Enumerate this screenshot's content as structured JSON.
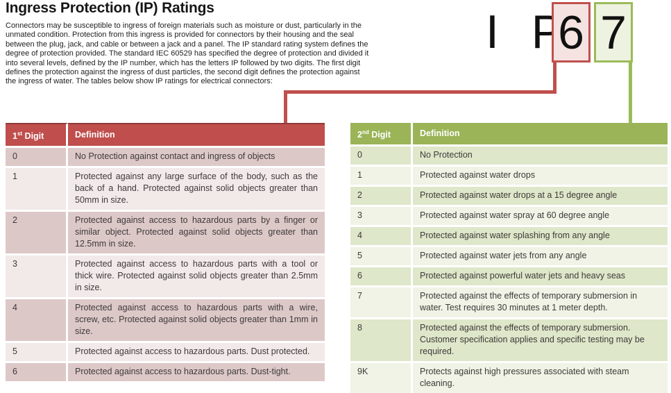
{
  "title": "Ingress Protection (IP) Ratings",
  "intro": "Connectors may be susceptible to ingress of foreign materials such as moisture or dust, particularly in the unmated condition. Protection from this ingress is provided for connectors by their housing and the seal between the plug, jack, and cable or between a jack and a panel. The IP standard rating system defines the degree of protection provided. The standard IEC 60529 has specified the degree of protection and divided it into several levels, defined by the IP number, which has the letters IP followed by two digits. The first digit defines the protection against the ingress of dust particles, the second digit defines the protection against the ingress of water. The tables below show IP ratings for electrical connectors:",
  "ip_graphic": {
    "letters": "I P",
    "first_digit": "6",
    "second_digit": "7",
    "red_accent": "#c0504d",
    "green_accent": "#9bbb59"
  },
  "first_digit_table": {
    "header": {
      "num": "1",
      "sup": "st",
      "rest": " Digit",
      "definition": "Definition"
    },
    "rows": [
      {
        "digit": "0",
        "definition": "No Protection against contact and ingress of objects"
      },
      {
        "digit": "1",
        "definition": "Protected against any large surface of the body, such as the back of a hand. Protected against solid objects greater than 50mm in size."
      },
      {
        "digit": "2",
        "definition": "Protected against access to hazardous parts by a finger or similar object. Protected against solid objects greater than 12.5mm in size."
      },
      {
        "digit": "3",
        "definition": "Protected against access to hazardous parts with a tool or thick wire. Protected against solid objects greater than 2.5mm in size."
      },
      {
        "digit": "4",
        "definition": "Protected against access to hazardous parts with a wire, screw, etc. Protected against solid objects greater than 1mm in size."
      },
      {
        "digit": "5",
        "definition": "Protected against access to hazardous parts. Dust protected."
      },
      {
        "digit": "6",
        "definition": "Protected against access to hazardous parts. Dust-tight."
      }
    ]
  },
  "second_digit_table": {
    "header": {
      "num": "2",
      "sup": "nd",
      "rest": " Digit",
      "definition": "Definition"
    },
    "rows": [
      {
        "digit": "0",
        "definition": "No Protection"
      },
      {
        "digit": "1",
        "definition": "Protected against water drops"
      },
      {
        "digit": "2",
        "definition": "Protected against water drops at a 15 degree angle"
      },
      {
        "digit": "3",
        "definition": "Protected against water spray at 60 degree angle"
      },
      {
        "digit": "4",
        "definition": "Protected against water splashing from any angle"
      },
      {
        "digit": "5",
        "definition": "Protected against water jets from any angle"
      },
      {
        "digit": "6",
        "definition": "Protected against powerful water jets and heavy seas"
      },
      {
        "digit": "7",
        "definition": "Protected against the effects of temporary submersion in water. Test requires 30 minutes at 1 meter depth."
      },
      {
        "digit": "8",
        "definition": "Protected against the effects of temporary submersion. Customer specification applies and specific testing may be required."
      },
      {
        "digit": "9K",
        "definition": "Protects against high pressures associated with steam cleaning."
      }
    ]
  }
}
